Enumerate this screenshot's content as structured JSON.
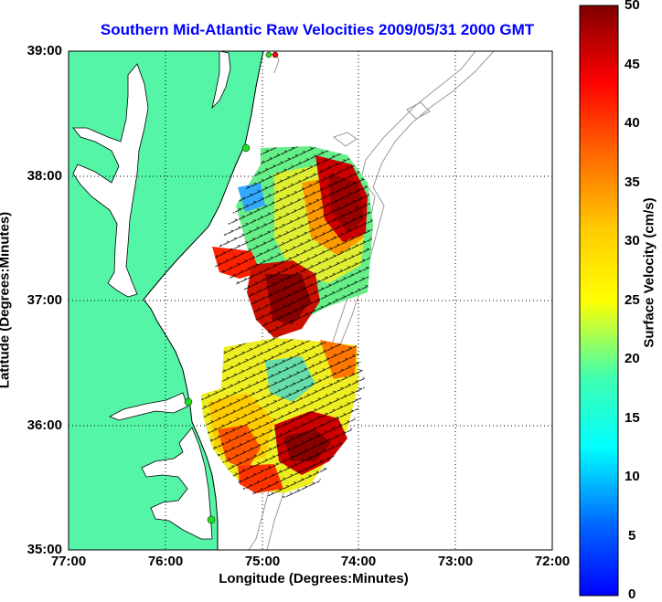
{
  "title": "Southern Mid-Atlantic Raw Velocities 2009/05/31 2000 GMT",
  "axes": {
    "xlabel": "Longitude (Degrees:Minutes)",
    "ylabel": "Latitude (Degrees:Minutes)",
    "xticks": [
      "77:00",
      "76:00",
      "75:00",
      "74:00",
      "73:00",
      "72:00"
    ],
    "yticks": [
      "39:00",
      "38:00",
      "37:00",
      "36:00",
      "35:00"
    ]
  },
  "colorbar": {
    "label": "Surface Velocity (cm/s)",
    "ticks": [
      "50",
      "45",
      "40",
      "35",
      "30",
      "25",
      "20",
      "15",
      "10",
      "5",
      "0"
    ],
    "min": 0,
    "max": 50
  },
  "colors": {
    "land": "#55f5a8",
    "water": "#ffffff",
    "title": "#0000ff",
    "coast": "#000000",
    "bathymetry": "#999999",
    "station": "#22dd22"
  },
  "chart_data": {
    "type": "heatmap",
    "title": "Southern Mid-Atlantic Raw Velocities 2009/05/31 2000 GMT",
    "xlabel": "Longitude (Degrees:Minutes)",
    "ylabel": "Latitude (Degrees:Minutes)",
    "xlim": [
      -77.0,
      -72.0
    ],
    "ylim": [
      35.0,
      39.0
    ],
    "colorbar_range": [
      0,
      50
    ],
    "colorbar_label": "Surface Velocity (cm/s)",
    "colormap": "jet",
    "grid": true
  }
}
